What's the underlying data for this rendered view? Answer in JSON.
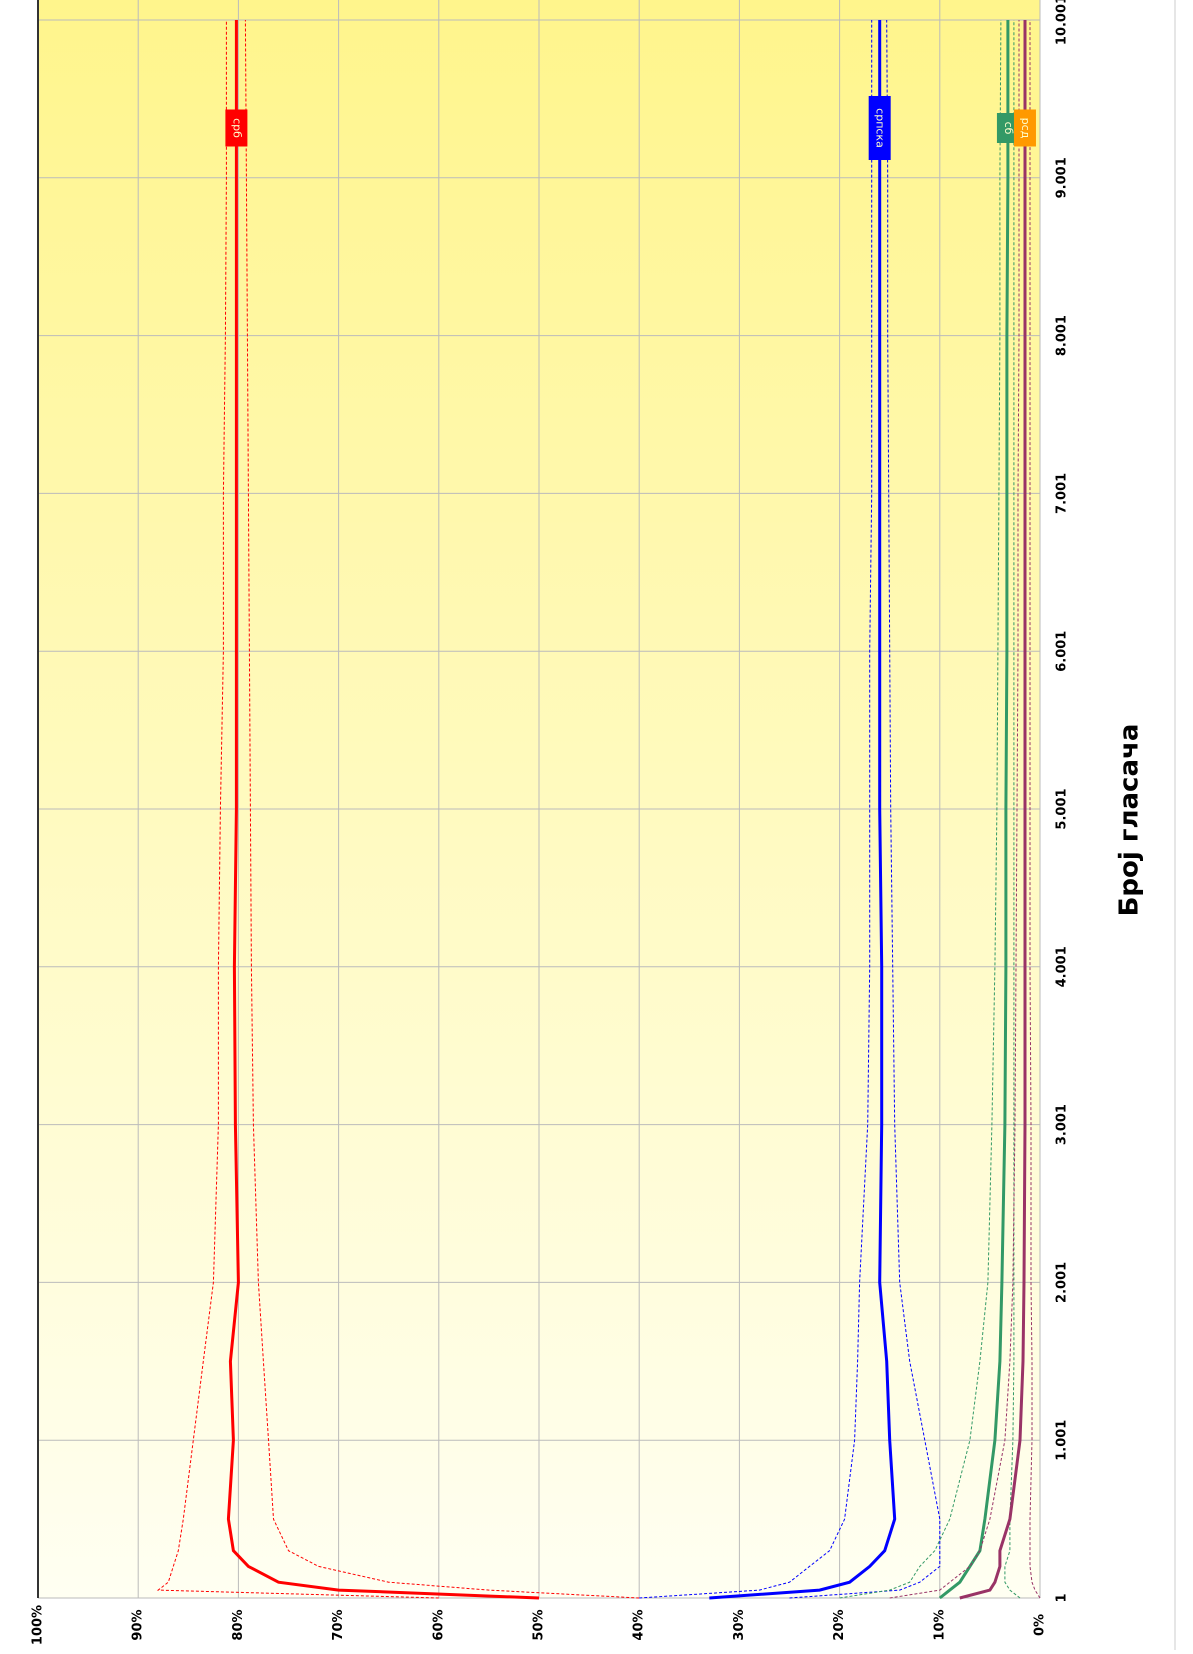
{
  "chart_data": {
    "type": "line",
    "x_label": "Број гласача",
    "x": [
      1,
      51,
      101,
      201,
      301,
      501,
      1001,
      1501,
      2001,
      3001,
      4001,
      5001,
      6001,
      7001,
      8001,
      9001,
      10001
    ],
    "xlim": [
      1,
      10001
    ],
    "xticks": [
      {
        "value": 1,
        "label": "1"
      },
      {
        "value": 1001,
        "label": "1.001"
      },
      {
        "value": 2001,
        "label": "2.001"
      },
      {
        "value": 3001,
        "label": "3.001"
      },
      {
        "value": 4001,
        "label": "4.001"
      },
      {
        "value": 5001,
        "label": "5.001"
      },
      {
        "value": 6001,
        "label": "6.001"
      },
      {
        "value": 7001,
        "label": "7.001"
      },
      {
        "value": 8001,
        "label": "8.001"
      },
      {
        "value": 9001,
        "label": "9.001"
      },
      {
        "value": 10001,
        "label": "10.001"
      }
    ],
    "ylim": [
      0,
      100
    ],
    "yticks": [
      {
        "value": 0,
        "label": "0%"
      },
      {
        "value": 10,
        "label": "10%"
      },
      {
        "value": 20,
        "label": "20%"
      },
      {
        "value": 30,
        "label": "30%"
      },
      {
        "value": 40,
        "label": "40%"
      },
      {
        "value": 50,
        "label": "50%"
      },
      {
        "value": 60,
        "label": "60%"
      },
      {
        "value": 70,
        "label": "70%"
      },
      {
        "value": 80,
        "label": "80%"
      },
      {
        "value": 90,
        "label": "90%"
      },
      {
        "value": 100,
        "label": "100%"
      }
    ],
    "grid": true,
    "series": [
      {
        "name": "срб",
        "color": "#ff0000",
        "label_color": "#ff0000",
        "values": [
          50,
          70,
          76,
          79,
          80.5,
          81,
          80.5,
          80.8,
          80,
          80.3,
          80.4,
          80.2,
          80.2,
          80.2,
          80.2,
          80.2,
          80.2
        ],
        "upper": [
          60,
          88,
          87,
          86.5,
          86,
          85.5,
          84.5,
          83.5,
          82.5,
          82,
          82,
          81.8,
          81.5,
          81.5,
          81.3,
          81.2,
          81.2
        ],
        "lower": [
          40,
          55,
          65,
          72,
          75,
          76.5,
          77,
          77.5,
          78,
          78.5,
          78.7,
          78.8,
          78.9,
          79,
          79.1,
          79.2,
          79.3
        ]
      },
      {
        "name": "српска",
        "color": "#0000ff",
        "label_color": "#0000ff",
        "values": [
          33,
          22,
          19,
          17,
          15.5,
          14.5,
          15,
          15.3,
          16,
          15.8,
          15.8,
          16,
          16,
          16,
          16,
          16,
          16
        ],
        "upper": [
          40,
          28,
          25,
          23,
          21,
          19.5,
          18.5,
          18.2,
          18,
          17.2,
          17,
          17,
          17,
          16.8,
          16.8,
          16.8,
          16.8
        ],
        "lower": [
          25,
          14,
          12,
          10,
          10,
          10,
          11.5,
          13,
          14,
          14.5,
          14.7,
          14.9,
          15,
          15.1,
          15.2,
          15.2,
          15.3
        ]
      },
      {
        "name": "сб",
        "color": "#339966",
        "label_color": "#339966",
        "values": [
          10,
          9,
          8,
          7,
          6,
          5.5,
          4.5,
          4,
          3.8,
          3.5,
          3.4,
          3.4,
          3.3,
          3.3,
          3.3,
          3.2,
          3.2
        ],
        "upper": [
          20,
          15,
          13,
          12,
          10.5,
          9,
          7,
          6,
          5.2,
          4.8,
          4.5,
          4.3,
          4.2,
          4.1,
          4,
          4,
          3.9
        ],
        "lower": [
          2,
          3,
          3.5,
          3.5,
          3,
          3,
          2.7,
          2.6,
          2.6,
          2.6,
          2.6,
          2.6,
          2.6,
          2.6,
          2.6,
          2.6,
          2.6
        ]
      },
      {
        "name": "рсд",
        "color": "#993366",
        "label_color": "#ff9900",
        "values": [
          8,
          5,
          4.5,
          4,
          4,
          3,
          2,
          1.7,
          1.6,
          1.5,
          1.5,
          1.5,
          1.5,
          1.5,
          1.5,
          1.5,
          1.5
        ],
        "upper": [
          15,
          10,
          9,
          7,
          6,
          5,
          3.5,
          3,
          2.7,
          2.5,
          2.4,
          2.3,
          2.2,
          2.2,
          2.1,
          2.1,
          2.1
        ],
        "lower": [
          0,
          0.5,
          0.8,
          1,
          1,
          1,
          0.8,
          0.8,
          0.9,
          0.9,
          1,
          1,
          1,
          1,
          1,
          1,
          1
        ]
      }
    ]
  }
}
